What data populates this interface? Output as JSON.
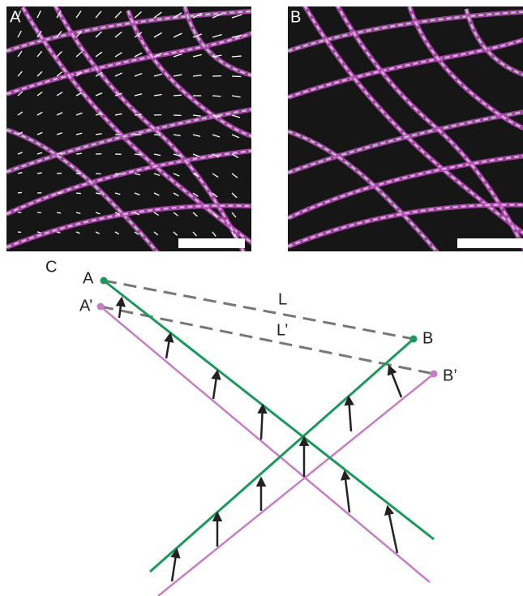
{
  "panels": [
    {
      "label": "A"
    },
    {
      "label": "B"
    }
  ],
  "diagram": {
    "label": "C",
    "points": [
      "A",
      "A’",
      "B",
      "B’"
    ],
    "lengths": [
      "L",
      "L’"
    ]
  }
}
